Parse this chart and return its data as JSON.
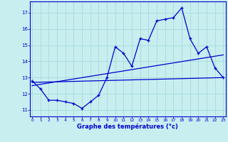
{
  "xlabel": "Graphe des températures (°c)",
  "bg_color": "#c8eef0",
  "line_color": "#0000cc",
  "grid_color": "#aadddd",
  "x_ticks": [
    0,
    1,
    2,
    3,
    4,
    5,
    6,
    7,
    8,
    9,
    10,
    11,
    12,
    13,
    14,
    15,
    16,
    17,
    18,
    19,
    20,
    21,
    22,
    23
  ],
  "y_ticks": [
    11,
    12,
    13,
    14,
    15,
    16,
    17
  ],
  "xlim": [
    -0.3,
    23.3
  ],
  "ylim": [
    10.6,
    17.7
  ],
  "line1_x": [
    0,
    1,
    2,
    3,
    4,
    5,
    6,
    7,
    8,
    9,
    10,
    11,
    12,
    13,
    14,
    15,
    16,
    17,
    18,
    19,
    20,
    21,
    22,
    23
  ],
  "line1_y": [
    12.8,
    12.3,
    11.6,
    11.6,
    11.5,
    11.4,
    11.1,
    11.5,
    11.9,
    13.0,
    14.9,
    14.5,
    13.7,
    15.4,
    15.3,
    16.5,
    16.6,
    16.7,
    17.3,
    15.4,
    14.5,
    14.9,
    13.6,
    13.0
  ],
  "line2_x": [
    0,
    23
  ],
  "line2_y": [
    12.7,
    13.0
  ],
  "line3_x": [
    0,
    23
  ],
  "line3_y": [
    12.5,
    14.4
  ]
}
